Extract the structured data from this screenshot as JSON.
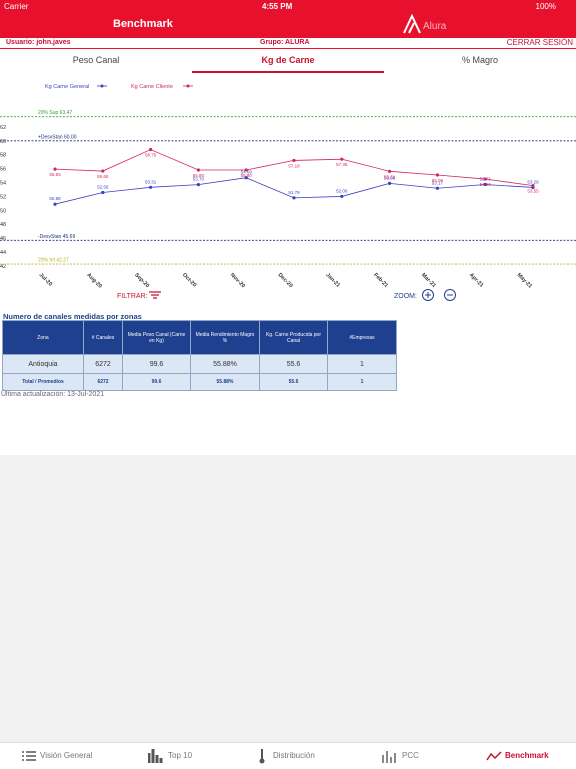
{
  "status_bar": {
    "carrier": "Carrier",
    "time": "4:55 PM",
    "battery": "100%"
  },
  "header": {
    "title": "Benchmark",
    "logo": "Alura"
  },
  "user_bar": {
    "user": "Usuario: john.javes",
    "group": "Grupo: ALURA",
    "logout": "CERRAR SESIÓN"
  },
  "tabs": [
    "Peso Canal",
    "Kg de Carne",
    "% Magro"
  ],
  "chart_data": {
    "type": "line",
    "categories": [
      "Jul-20",
      "Aug-20",
      "Sep-20",
      "Oct-20",
      "Nov-20",
      "Dec-20",
      "Jan-21",
      "Feb-21",
      "Mar-21",
      "Apr-21",
      "May-21"
    ],
    "series": [
      {
        "name": "Kg Carne General",
        "color": "#3b3fc4",
        "values": [
          50.88,
          52.56,
          53.31,
          53.7,
          54.69,
          51.79,
          52.0,
          53.88,
          53.17,
          53.71,
          53.29
        ],
        "value_labels": [
          "50.88",
          "52.56",
          "53.31",
          "53.70",
          "54.69",
          "51.79",
          "52.00",
          "53.88",
          "53.17",
          "53.71",
          "53.29"
        ]
      },
      {
        "name": "Kg Carne Cliente",
        "color": "#d6245a",
        "values": [
          55.93,
          55.65,
          58.75,
          55.8,
          55.8,
          57.18,
          57.36,
          55.61,
          55.08,
          54.5,
          53.55
        ],
        "value_labels": [
          "55.93",
          "55.65",
          "58.75",
          "55.80",
          "55.80",
          "57.18",
          "57.36",
          "55.61",
          "55.08",
          "54.50",
          "53.55"
        ]
      }
    ],
    "reference_lines": [
      {
        "label": "20% Sup 63.47",
        "value": 63.47,
        "color": "#3aa13a"
      },
      {
        "label": "+DesvStan 60.00",
        "value": 60.0,
        "color": "#1f2f7a"
      },
      {
        "label": "-DesvStan 45.69",
        "value": 45.69,
        "color": "#1f2f7a"
      },
      {
        "label": "20% Inf 42.27",
        "value": 42.27,
        "color": "#b5b520"
      }
    ],
    "ylim": [
      41.7,
      65.7
    ],
    "yticks": [
      42,
      44,
      46,
      48,
      50,
      52,
      54,
      56,
      58,
      60,
      62
    ],
    "grid": false
  },
  "controls": {
    "filter": "FILTRAR:",
    "zoom": "ZOOM:"
  },
  "table": {
    "title": "Numero de canales medidas por zonas",
    "headers": [
      "Zona",
      "# Canales",
      "Media Peso Canal (Carne en Kg)",
      "Media Rendimiento Magro %",
      "Kg. Carne Producida por Canal",
      "#Empresas"
    ],
    "rows": [
      [
        "Antioquia",
        "6272",
        "99.6",
        "55.88%",
        "55.6",
        "1"
      ]
    ],
    "total": [
      "Total / Promedios",
      "6272",
      "99.6",
      "55.88%",
      "55.6",
      "1"
    ]
  },
  "updated": "Última actualización: 13-Jul-2021",
  "bottom_tabs": [
    "Visión General",
    "Top 10",
    "Distribución",
    "PCC",
    "Benchmark"
  ]
}
